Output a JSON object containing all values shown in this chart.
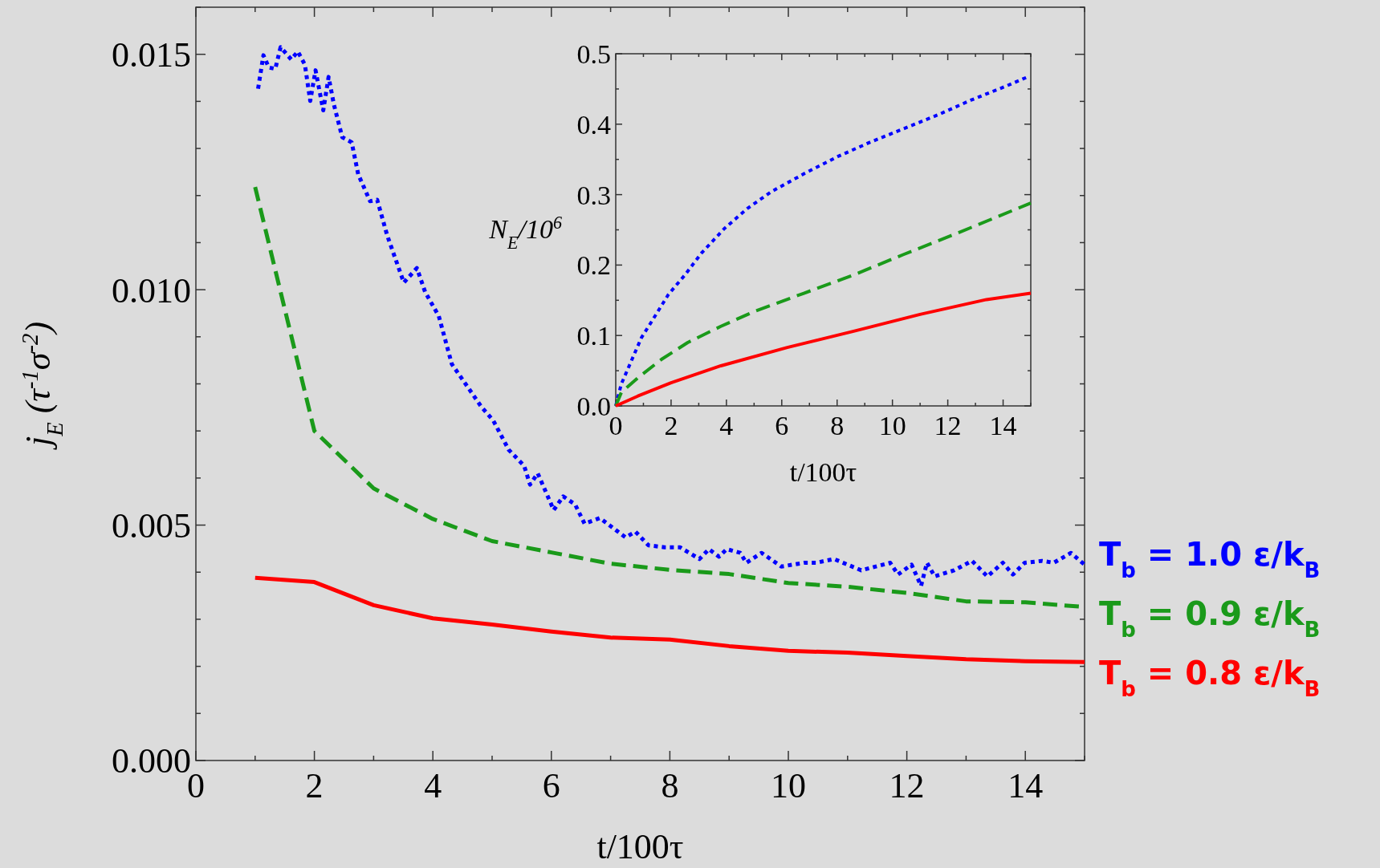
{
  "chart_data": [
    {
      "type": "line",
      "xlabel": "t/100τ",
      "ylabel": "j$_{E}$ (τ$^{-1}$σ$^{-2}$)",
      "xlim": [
        0,
        15
      ],
      "ylim": [
        0,
        0.016
      ],
      "xticks": [
        0,
        {
          "value": 1,
          "label": null
        },
        2,
        {
          "value": 3,
          "label": null
        },
        4,
        {
          "value": 5,
          "label": null
        },
        6,
        {
          "value": 7,
          "label": null
        },
        8,
        {
          "value": 9,
          "label": null
        },
        10,
        {
          "value": 11,
          "label": null
        },
        12,
        {
          "value": 13,
          "label": null
        },
        14,
        {
          "value": 15,
          "label": null
        }
      ],
      "yticks": [
        {
          "value": 0,
          "label": "0.000"
        },
        {
          "value": 0.001,
          "label": null
        },
        {
          "value": 0.002,
          "label": null
        },
        {
          "value": 0.003,
          "label": null
        },
        {
          "value": 0.004,
          "label": null
        },
        {
          "value": 0.005,
          "label": "0.005"
        },
        {
          "value": 0.006,
          "label": null
        },
        {
          "value": 0.007,
          "label": null
        },
        {
          "value": 0.008,
          "label": null
        },
        {
          "value": 0.009,
          "label": null
        },
        {
          "value": 0.01,
          "label": "0.010"
        },
        {
          "value": 0.011,
          "label": null
        },
        {
          "value": 0.012,
          "label": null
        },
        {
          "value": 0.013,
          "label": null
        },
        {
          "value": 0.014,
          "label": null
        },
        {
          "value": 0.015,
          "label": "0.015"
        },
        {
          "value": 0.016,
          "label": null
        }
      ],
      "grid": false,
      "legend": "right",
      "marker": "none",
      "series": [
        {
          "name": "T$_{b}$ = 1.0 ε/k$_{B}$",
          "color": "#0000ff",
          "line_style": "dotted",
          "x": [
            1.05,
            1.14,
            1.23,
            1.34,
            1.43,
            1.61,
            1.72,
            1.84,
            1.93,
            2.02,
            2.15,
            2.24,
            2.33,
            2.47,
            2.63,
            2.74,
            2.94,
            3.06,
            3.23,
            3.51,
            3.73,
            3.87,
            4.1,
            4.32,
            4.82,
            5.02,
            5.28,
            5.54,
            5.64,
            5.77,
            6.04,
            6.2,
            6.4,
            6.56,
            6.82,
            7.25,
            7.42,
            7.64,
            7.91,
            8.17,
            8.5,
            8.66,
            8.83,
            8.96,
            9.19,
            9.29,
            9.55,
            9.88,
            10.27,
            10.47,
            10.77,
            11.23,
            11.72,
            11.85,
            12.08,
            12.24,
            12.34,
            12.47,
            12.8,
            13.1,
            13.36,
            13.62,
            13.79,
            13.99,
            14.28,
            14.48,
            14.77,
            15
          ],
          "values": [
            0.01427,
            0.01498,
            0.01472,
            0.01469,
            0.01515,
            0.01489,
            0.01506,
            0.01478,
            0.01401,
            0.01466,
            0.01381,
            0.01452,
            0.01393,
            0.01324,
            0.01313,
            0.01245,
            0.01188,
            0.01191,
            0.01115,
            0.01015,
            0.01046,
            0.00995,
            0.00944,
            0.00842,
            0.00751,
            0.00722,
            0.0066,
            0.00626,
            0.00586,
            0.0061,
            0.00532,
            0.00561,
            0.00544,
            0.00503,
            0.00515,
            0.00474,
            0.00486,
            0.00457,
            0.00453,
            0.00453,
            0.00428,
            0.00449,
            0.00433,
            0.00449,
            0.00441,
            0.0042,
            0.00441,
            0.00412,
            0.0042,
            0.0042,
            0.00428,
            0.00404,
            0.0042,
            0.00395,
            0.00416,
            0.00371,
            0.0042,
            0.00391,
            0.00404,
            0.00424,
            0.00391,
            0.0042,
            0.00395,
            0.0042,
            0.00424,
            0.0042,
            0.00441,
            0.00416
          ]
        },
        {
          "name": "T$_{b}$ = 0.9 ε/k$_{B}$",
          "color": "#1a9a1a",
          "line_style": "dashed",
          "x": [
            1,
            2,
            3,
            4,
            5,
            6,
            7,
            8,
            9,
            10,
            11,
            12,
            13,
            14,
            15
          ],
          "values": [
            0.01218,
            0.007,
            0.00578,
            0.00513,
            0.00466,
            0.00442,
            0.00418,
            0.00405,
            0.00396,
            0.00377,
            0.00369,
            0.00356,
            0.00338,
            0.00336,
            0.00326
          ]
        },
        {
          "name": "T$_{b}$ = 0.8 ε/k$_{B}$",
          "color": "#ff0000",
          "line_style": "solid",
          "x": [
            1,
            2,
            3,
            4,
            5,
            6,
            7,
            8,
            9,
            10,
            11,
            12,
            13,
            14,
            15
          ],
          "values": [
            0.00388,
            0.00379,
            0.0033,
            0.00302,
            0.00289,
            0.00274,
            0.00261,
            0.00257,
            0.00243,
            0.00233,
            0.00229,
            0.00222,
            0.00215,
            0.00211,
            0.00209
          ]
        }
      ]
    },
    {
      "type": "line",
      "xlabel": "t/100τ",
      "ylabel": "N$_{E}$/10$^{6}$",
      "xlim": [
        0,
        15
      ],
      "ylim": [
        0,
        0.5
      ],
      "xticks": [
        0,
        {
          "value": 1,
          "label": null
        },
        2,
        {
          "value": 3,
          "label": null
        },
        4,
        {
          "value": 5,
          "label": null
        },
        6,
        {
          "value": 7,
          "label": null
        },
        8,
        {
          "value": 9,
          "label": null
        },
        10,
        {
          "value": 11,
          "label": null
        },
        12,
        {
          "value": 13,
          "label": null
        },
        14,
        {
          "value": 15,
          "label": null
        }
      ],
      "yticks": [
        {
          "value": 0,
          "label": "0.0"
        },
        {
          "value": 0.05,
          "label": null
        },
        {
          "value": 0.1,
          "label": "0.1"
        },
        {
          "value": 0.15,
          "label": null
        },
        {
          "value": 0.2,
          "label": "0.2"
        },
        {
          "value": 0.25,
          "label": null
        },
        {
          "value": 0.3,
          "label": "0.3"
        },
        {
          "value": 0.35,
          "label": null
        },
        {
          "value": 0.4,
          "label": "0.4"
        },
        {
          "value": 0.45,
          "label": null
        },
        {
          "value": 0.5,
          "label": "0.5"
        }
      ],
      "grid": false,
      "marker": "none",
      "series": [
        {
          "color": "#0000ff",
          "line_style": "dotted",
          "x": [
            0,
            0.2,
            0.93,
            1.3,
            1.9,
            2.5,
            3.1,
            3.93,
            4.78,
            5.62,
            6.82,
            8.02,
            9.23,
            10.43,
            11.63,
            12.83,
            14.04,
            14.88
          ],
          "values": [
            0,
            0.031,
            0.097,
            0.12,
            0.158,
            0.186,
            0.217,
            0.252,
            0.281,
            0.304,
            0.33,
            0.354,
            0.375,
            0.394,
            0.413,
            0.434,
            0.453,
            0.467
          ]
        },
        {
          "color": "#1a9a1a",
          "line_style": "dashed",
          "x": [
            0,
            0.2,
            0.8,
            1.65,
            2.6,
            3.8,
            5,
            6.8,
            8.6,
            10.4,
            12.2,
            15
          ],
          "values": [
            0,
            0.019,
            0.04,
            0.066,
            0.09,
            0.113,
            0.134,
            0.16,
            0.186,
            0.215,
            0.243,
            0.288
          ]
        },
        {
          "color": "#ff0000",
          "line_style": "solid",
          "x": [
            0,
            0.8,
            2,
            3.8,
            6.2,
            8.6,
            11,
            13.4,
            15
          ],
          "values": [
            0,
            0.014,
            0.033,
            0.057,
            0.083,
            0.106,
            0.13,
            0.151,
            0.16
          ]
        }
      ]
    }
  ]
}
